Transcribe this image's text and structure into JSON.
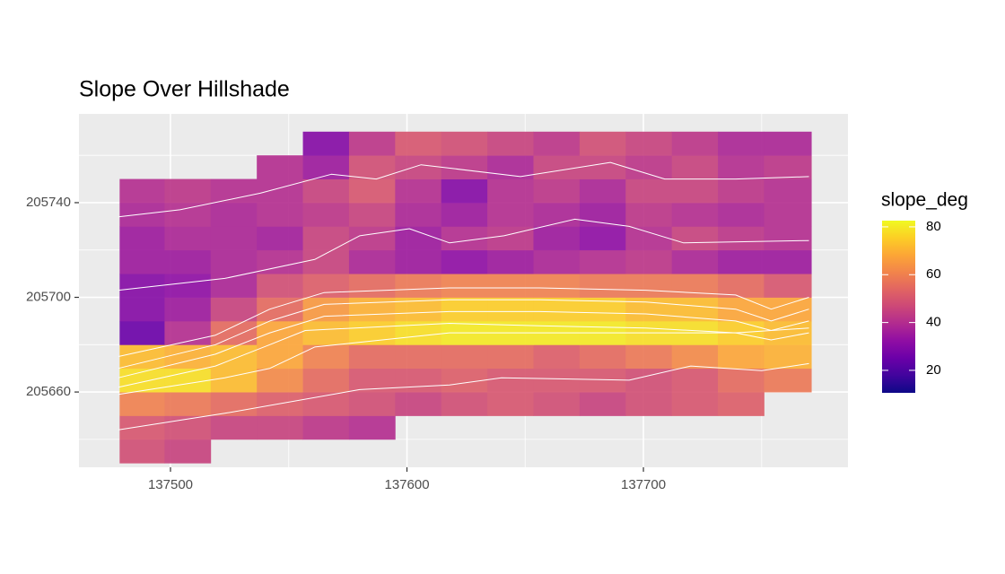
{
  "chart_data": {
    "type": "raster",
    "title": "Slope Over Hillshade",
    "legend_title": "slope_deg",
    "xlim": [
      137461.3,
      137786.5
    ],
    "ylim": [
      205628.2,
      205777.5
    ],
    "xticks": [
      137500,
      137600,
      137700
    ],
    "yticks": [
      205660,
      205700,
      205740
    ],
    "grid": true,
    "color_limits": [
      10.6,
      82.6
    ],
    "color_ticks": [
      20,
      40,
      60,
      80
    ],
    "colors": [
      "#0d0887",
      "#41049d",
      "#6a00a8",
      "#8f0da4",
      "#b12a90",
      "#cc4778",
      "#e16462",
      "#f2844b",
      "#fca636",
      "#fcce25",
      "#f0f921"
    ],
    "x": [
      137488,
      137507,
      137527,
      137546,
      137566,
      137585,
      137605,
      137624,
      137644,
      137663,
      137683,
      137702,
      137722,
      137741,
      137761
    ],
    "y": [
      205635,
      205645,
      205655,
      205665,
      205675,
      205685,
      205695,
      205705,
      205715,
      205725,
      205735,
      205745,
      205755,
      205765
    ],
    "values": [
      [
        48,
        45,
        null,
        null,
        null,
        null,
        null,
        null,
        null,
        null,
        null,
        null,
        null,
        null,
        null
      ],
      [
        50,
        48,
        45,
        45,
        42,
        40,
        null,
        null,
        null,
        null,
        null,
        null,
        null,
        null,
        null
      ],
      [
        60,
        58,
        55,
        52,
        50,
        48,
        45,
        48,
        50,
        48,
        45,
        48,
        50,
        52,
        null
      ],
      [
        78,
        78,
        72,
        62,
        55,
        50,
        50,
        52,
        50,
        50,
        50,
        48,
        50,
        55,
        58
      ],
      [
        72,
        70,
        72,
        68,
        60,
        55,
        55,
        55,
        55,
        52,
        55,
        58,
        62,
        68,
        70
      ],
      [
        25,
        40,
        55,
        68,
        72,
        75,
        78,
        80,
        80,
        80,
        80,
        78,
        78,
        75,
        72
      ],
      [
        30,
        35,
        45,
        55,
        65,
        70,
        72,
        75,
        75,
        75,
        75,
        72,
        72,
        68,
        68
      ],
      [
        30,
        32,
        38,
        48,
        52,
        55,
        58,
        60,
        60,
        60,
        58,
        58,
        58,
        55,
        50
      ],
      [
        35,
        35,
        38,
        40,
        45,
        38,
        35,
        32,
        35,
        38,
        40,
        42,
        38,
        35,
        35
      ],
      [
        35,
        38,
        38,
        36,
        45,
        42,
        35,
        40,
        42,
        35,
        32,
        40,
        45,
        42,
        40
      ],
      [
        38,
        40,
        38,
        40,
        42,
        45,
        38,
        35,
        40,
        38,
        35,
        42,
        40,
        38,
        40
      ],
      [
        40,
        42,
        40,
        40,
        45,
        50,
        40,
        30,
        40,
        42,
        38,
        45,
        45,
        42,
        40
      ],
      [
        null,
        null,
        null,
        40,
        35,
        48,
        45,
        42,
        38,
        45,
        45,
        42,
        45,
        40,
        42
      ],
      [
        null,
        null,
        null,
        null,
        30,
        42,
        50,
        48,
        45,
        42,
        48,
        45,
        42,
        38,
        38
      ]
    ],
    "contour_color": "#ffffff",
    "contours": [
      {
        "x": [
          137478,
          137504,
          137538,
          137568,
          137587,
          137606,
          137648,
          137686,
          137709,
          137739,
          137770
        ],
        "y": [
          205734,
          205737,
          205744,
          205752,
          205750,
          205756,
          205751,
          205757,
          205750,
          205750,
          205751
        ]
      },
      {
        "x": [
          137478,
          137523,
          137561,
          137580,
          137601,
          137618,
          137641,
          137671,
          137694,
          137717,
          137770
        ],
        "y": [
          205703,
          205708,
          205716,
          205726,
          205729,
          205723,
          205726,
          205733,
          205730,
          205723,
          205724
        ]
      },
      {
        "x": [
          137478,
          137519,
          137542,
          137565,
          137618,
          137656,
          137701,
          137739,
          137754,
          137770
        ],
        "y": [
          205675,
          205684,
          205695,
          205702,
          205704,
          205704,
          205703,
          205701,
          205695,
          205700
        ]
      },
      {
        "x": [
          137478,
          137519,
          137542,
          137565,
          137618,
          137656,
          137701,
          137739,
          137754,
          137770
        ],
        "y": [
          205670,
          205680,
          205690,
          205697,
          205699,
          205699,
          205698,
          205695,
          205690,
          205695
        ]
      },
      {
        "x": [
          137478,
          137519,
          137542,
          137565,
          137618,
          137656,
          137701,
          137739,
          137754,
          137770
        ],
        "y": [
          205666,
          205676,
          205685,
          205692,
          205694,
          205694,
          205693,
          205690,
          205686,
          205690
        ]
      },
      {
        "x": [
          137478,
          137519,
          137542,
          137557,
          137618,
          137656,
          137701,
          137739,
          137754,
          137770
        ],
        "y": [
          205662,
          205671,
          205680,
          205686,
          205689,
          205688,
          205687,
          205685,
          205682,
          205685
        ]
      },
      {
        "x": [
          137478,
          137523,
          137542,
          137561,
          137618,
          137656,
          137694,
          137739,
          137770
        ],
        "y": [
          205659,
          205666,
          205670,
          205679,
          205685,
          205685,
          205685,
          205685,
          205687
        ]
      },
      {
        "x": [
          137478,
          137523,
          137580,
          137618,
          137640,
          137694,
          137720,
          137750,
          137770
        ],
        "y": [
          205644,
          205651,
          205661,
          205663,
          205666,
          205665,
          205671,
          205669,
          205672
        ]
      }
    ]
  }
}
